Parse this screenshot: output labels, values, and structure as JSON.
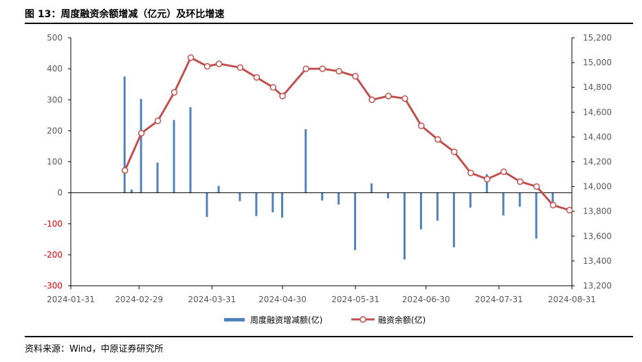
{
  "header": {
    "title": "图 13：周度融资余额增减（亿元）及环比增速"
  },
  "footer": {
    "source": "资料来源：Wind，中原证券研究所"
  },
  "chart_data": {
    "type": "bar+line",
    "title": "图 13：周度融资余额增减（亿元）及环比增速",
    "x_ticks": [
      "2024-01-31",
      "2024-02-29",
      "2024-03-31",
      "2024-04-30",
      "2024-05-31",
      "2024-06-30",
      "2024-07-31",
      "2024-08-31"
    ],
    "x_range": [
      "2024-01-31",
      "2024-08-31"
    ],
    "y_left": {
      "ticks": [
        500,
        400,
        300,
        200,
        100,
        0,
        -100,
        -200,
        -300
      ],
      "range": [
        -300,
        500
      ],
      "negative_tick_color": "#e00000",
      "positive_tick_color": "#595959"
    },
    "y_right": {
      "ticks": [
        "15,200",
        "15,000",
        "14,800",
        "14,600",
        "14,400",
        "14,200",
        "14,000",
        "13,800",
        "13,600",
        "13,400",
        "13,200"
      ],
      "range": [
        13200,
        15200
      ]
    },
    "grid": false,
    "legend_position": "bottom",
    "series": [
      {
        "name": "周度融资增减额(亿)",
        "type": "bar",
        "axis": "left",
        "color": "#4f81bd",
        "x": [
          "2024-02-23",
          "2024-02-26",
          "2024-03-01",
          "2024-03-08",
          "2024-03-15",
          "2024-03-22",
          "2024-03-29",
          "2024-04-03",
          "2024-04-12",
          "2024-04-19",
          "2024-04-26",
          "2024-04-30",
          "2024-05-10",
          "2024-05-17",
          "2024-05-24",
          "2024-05-31",
          "2024-06-07",
          "2024-06-14",
          "2024-06-21",
          "2024-06-28",
          "2024-07-05",
          "2024-07-12",
          "2024-07-19",
          "2024-07-26",
          "2024-08-02",
          "2024-08-09",
          "2024-08-16",
          "2024-08-23",
          "2024-08-30"
        ],
        "values": [
          375,
          10,
          303,
          97,
          235,
          276,
          -78,
          22,
          -27,
          -75,
          -63,
          -80,
          205,
          -25,
          -38,
          -185,
          30,
          -18,
          -215,
          -118,
          -90,
          -176,
          -48,
          60,
          -73,
          -45,
          -148,
          -35,
          0
        ]
      },
      {
        "name": "融资余额(亿)",
        "type": "line",
        "axis": "right",
        "color": "#c0504d",
        "marker": "circle",
        "x": [
          "2024-02-23",
          "2024-03-01",
          "2024-03-08",
          "2024-03-15",
          "2024-03-22",
          "2024-03-29",
          "2024-04-03",
          "2024-04-12",
          "2024-04-19",
          "2024-04-26",
          "2024-04-30",
          "2024-05-10",
          "2024-05-17",
          "2024-05-24",
          "2024-05-31",
          "2024-06-07",
          "2024-06-14",
          "2024-06-21",
          "2024-06-28",
          "2024-07-05",
          "2024-07-12",
          "2024-07-19",
          "2024-07-26",
          "2024-08-02",
          "2024-08-09",
          "2024-08-16",
          "2024-08-23",
          "2024-08-30"
        ],
        "values": [
          14130,
          14430,
          14530,
          14760,
          15040,
          14970,
          14990,
          14960,
          14880,
          14800,
          14730,
          14950,
          14950,
          14930,
          14890,
          14700,
          14730,
          14710,
          14490,
          14380,
          14280,
          14110,
          14060,
          14120,
          14040,
          14000,
          13850,
          13810
        ]
      }
    ]
  }
}
